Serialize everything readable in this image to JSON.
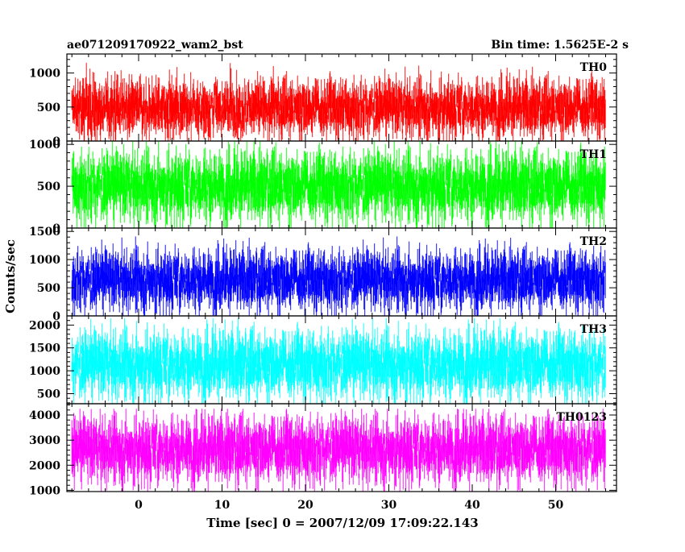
{
  "header": {
    "title": "ae071209170922_wam2_bst",
    "bin_time": "Bin time: 1.5625E-2 s"
  },
  "chart_data": {
    "type": "line",
    "title": "ae071209170922_wam2_bst",
    "subtitle": "Bin time: 1.5625E-2 s",
    "xlabel": "Time [sec] 0 = 2007/12/09 17:09:22.143",
    "ylabel": "Counts/sec",
    "xlim": [
      -8.6,
      57.3
    ],
    "x_data_range": [
      -8.0,
      56.0
    ],
    "x_ticks": [
      0,
      10,
      20,
      30,
      40,
      50
    ],
    "x_tick_labels": [
      "0",
      "10",
      "20",
      "30",
      "40",
      "50"
    ],
    "grid": false,
    "legend": "none",
    "panels": [
      {
        "name": "TH0",
        "color": "#ff0000",
        "ylim": [
          0,
          1280
        ],
        "y_ticks": [
          0,
          500,
          1000
        ],
        "y_tick_labels": [
          "0",
          "500",
          "1000"
        ],
        "mean": 450,
        "low": 70,
        "high": 900,
        "min": 0,
        "max": 1280
      },
      {
        "name": "TH1",
        "color": "#00ff00",
        "ylim": [
          0,
          1040
        ],
        "y_ticks": [
          0,
          500,
          1000
        ],
        "y_tick_labels": [
          "0",
          "500",
          "1000"
        ],
        "mean": 520,
        "low": 100,
        "high": 900,
        "min": 0,
        "max": 1040
      },
      {
        "name": "TH2",
        "color": "#0000ff",
        "ylim": [
          0,
          1560
        ],
        "y_ticks": [
          0,
          500,
          1000,
          1500
        ],
        "y_tick_labels": [
          "0",
          "500",
          "1000",
          "1500"
        ],
        "mean": 680,
        "low": 120,
        "high": 1150,
        "min": 0,
        "max": 1500
      },
      {
        "name": "TH3",
        "color": "#00ffff",
        "ylim": [
          280,
          2200
        ],
        "y_ticks": [
          500,
          1000,
          1500,
          2000
        ],
        "y_tick_labels": [
          "500",
          "1000",
          "1500",
          "2000"
        ],
        "mean": 1200,
        "low": 420,
        "high": 1850,
        "min": 280,
        "max": 2150
      },
      {
        "name": "TH0123",
        "color": "#ff00ff",
        "ylim": [
          950,
          4450
        ],
        "y_ticks": [
          1000,
          2000,
          3000,
          4000
        ],
        "y_tick_labels": [
          "1000",
          "2000",
          "3000",
          "4000"
        ],
        "mean": 2550,
        "low": 1350,
        "high": 3900,
        "min": 950,
        "max": 4250
      }
    ]
  }
}
